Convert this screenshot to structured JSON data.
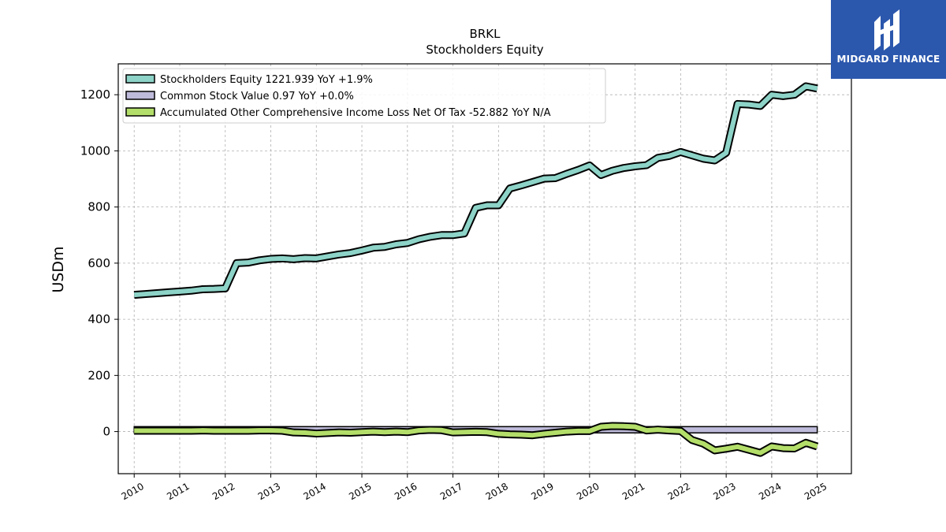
{
  "brand": {
    "name": "MIDGARD FINANCE",
    "bg_color": "#2b57ad"
  },
  "chart_data": {
    "type": "area",
    "title": "BRKL",
    "subtitle": "Stockholders  Equity",
    "ylabel": "USDm",
    "xlabel": "",
    "xlim": [
      2009.65,
      2025.75
    ],
    "ylim": [
      -150,
      1310
    ],
    "yticks": [
      0,
      200,
      400,
      600,
      800,
      1000,
      1200
    ],
    "xticks": [
      2010,
      2011,
      2012,
      2013,
      2014,
      2015,
      2016,
      2017,
      2018,
      2019,
      2020,
      2021,
      2022,
      2023,
      2024,
      2025
    ],
    "grid": true,
    "legend_position": "top-left",
    "series": [
      {
        "name": "Stockholders Equity  1221.939 YoY +1.9%",
        "color": "#8dd3c7",
        "x": [
          2010.0,
          2010.25,
          2010.5,
          2010.75,
          2011.0,
          2011.25,
          2011.5,
          2011.75,
          2012.0,
          2012.25,
          2012.5,
          2012.75,
          2013.0,
          2013.25,
          2013.5,
          2013.75,
          2014.0,
          2014.25,
          2014.5,
          2014.75,
          2015.0,
          2015.25,
          2015.5,
          2015.75,
          2016.0,
          2016.25,
          2016.5,
          2016.75,
          2017.0,
          2017.25,
          2017.5,
          2017.75,
          2018.0,
          2018.25,
          2018.5,
          2018.75,
          2019.0,
          2019.25,
          2019.5,
          2019.75,
          2020.0,
          2020.25,
          2020.5,
          2020.75,
          2021.0,
          2021.25,
          2021.5,
          2021.75,
          2022.0,
          2022.25,
          2022.5,
          2022.75,
          2023.0,
          2023.25,
          2023.5,
          2023.75,
          2024.0,
          2024.25,
          2024.5,
          2024.75,
          2025.0
        ],
        "values": [
          487,
          490,
          493,
          496,
          499,
          502,
          507,
          508,
          510,
          600,
          602,
          610,
          615,
          617,
          614,
          618,
          617,
          624,
          631,
          636,
          645,
          655,
          658,
          667,
          672,
          685,
          694,
          700,
          700,
          706,
          797,
          806,
          806,
          866,
          877,
          889,
          901,
          903,
          918,
          932,
          948,
          914,
          929,
          939,
          945,
          949,
          975,
          982,
          996,
          984,
          972,
          966,
          993,
          1167,
          1165,
          1160,
          1200,
          1195,
          1200,
          1230,
          1222
        ]
      },
      {
        "name": "Common Stock Value  0.97 YoY +0.0%",
        "color": "#bebada",
        "x": [
          2010.0,
          2025.0
        ],
        "values": [
          0.97,
          0.97
        ],
        "band_top": 12
      },
      {
        "name": "Accumulated Other Comprehensive Income Loss Net Of Tax  -52.882 YoY N/A",
        "color": "#b3de69",
        "x": [
          2010.0,
          2010.25,
          2010.5,
          2010.75,
          2011.0,
          2011.25,
          2011.5,
          2011.75,
          2012.0,
          2012.25,
          2012.5,
          2012.75,
          2013.0,
          2013.25,
          2013.5,
          2013.75,
          2014.0,
          2014.25,
          2014.5,
          2014.75,
          2015.0,
          2015.25,
          2015.5,
          2015.75,
          2016.0,
          2016.25,
          2016.5,
          2016.75,
          2017.0,
          2017.25,
          2017.5,
          2017.75,
          2018.0,
          2018.25,
          2018.5,
          2018.75,
          2019.0,
          2019.25,
          2019.5,
          2019.75,
          2020.0,
          2020.25,
          2020.5,
          2020.75,
          2021.0,
          2021.25,
          2021.5,
          2021.75,
          2022.0,
          2022.25,
          2022.5,
          2022.75,
          2023.0,
          2023.25,
          2023.5,
          2023.75,
          2024.0,
          2024.25,
          2024.5,
          2024.75,
          2025.0
        ],
        "values": [
          3,
          3,
          3,
          3,
          3,
          3,
          4,
          3,
          3,
          3,
          3,
          4,
          4,
          3,
          -3,
          -4,
          -7,
          -5,
          -3,
          -4,
          -2,
          0,
          -2,
          0,
          -2,
          4,
          6,
          5,
          -3,
          -2,
          -1,
          -2,
          -8,
          -10,
          -11,
          -13,
          -8,
          -4,
          0,
          2,
          2,
          17,
          20,
          19,
          17,
          4,
          7,
          4,
          2,
          -30,
          -43,
          -67,
          -61,
          -54,
          -65,
          -76,
          -53,
          -59,
          -60,
          -40,
          -53
        ]
      }
    ]
  }
}
